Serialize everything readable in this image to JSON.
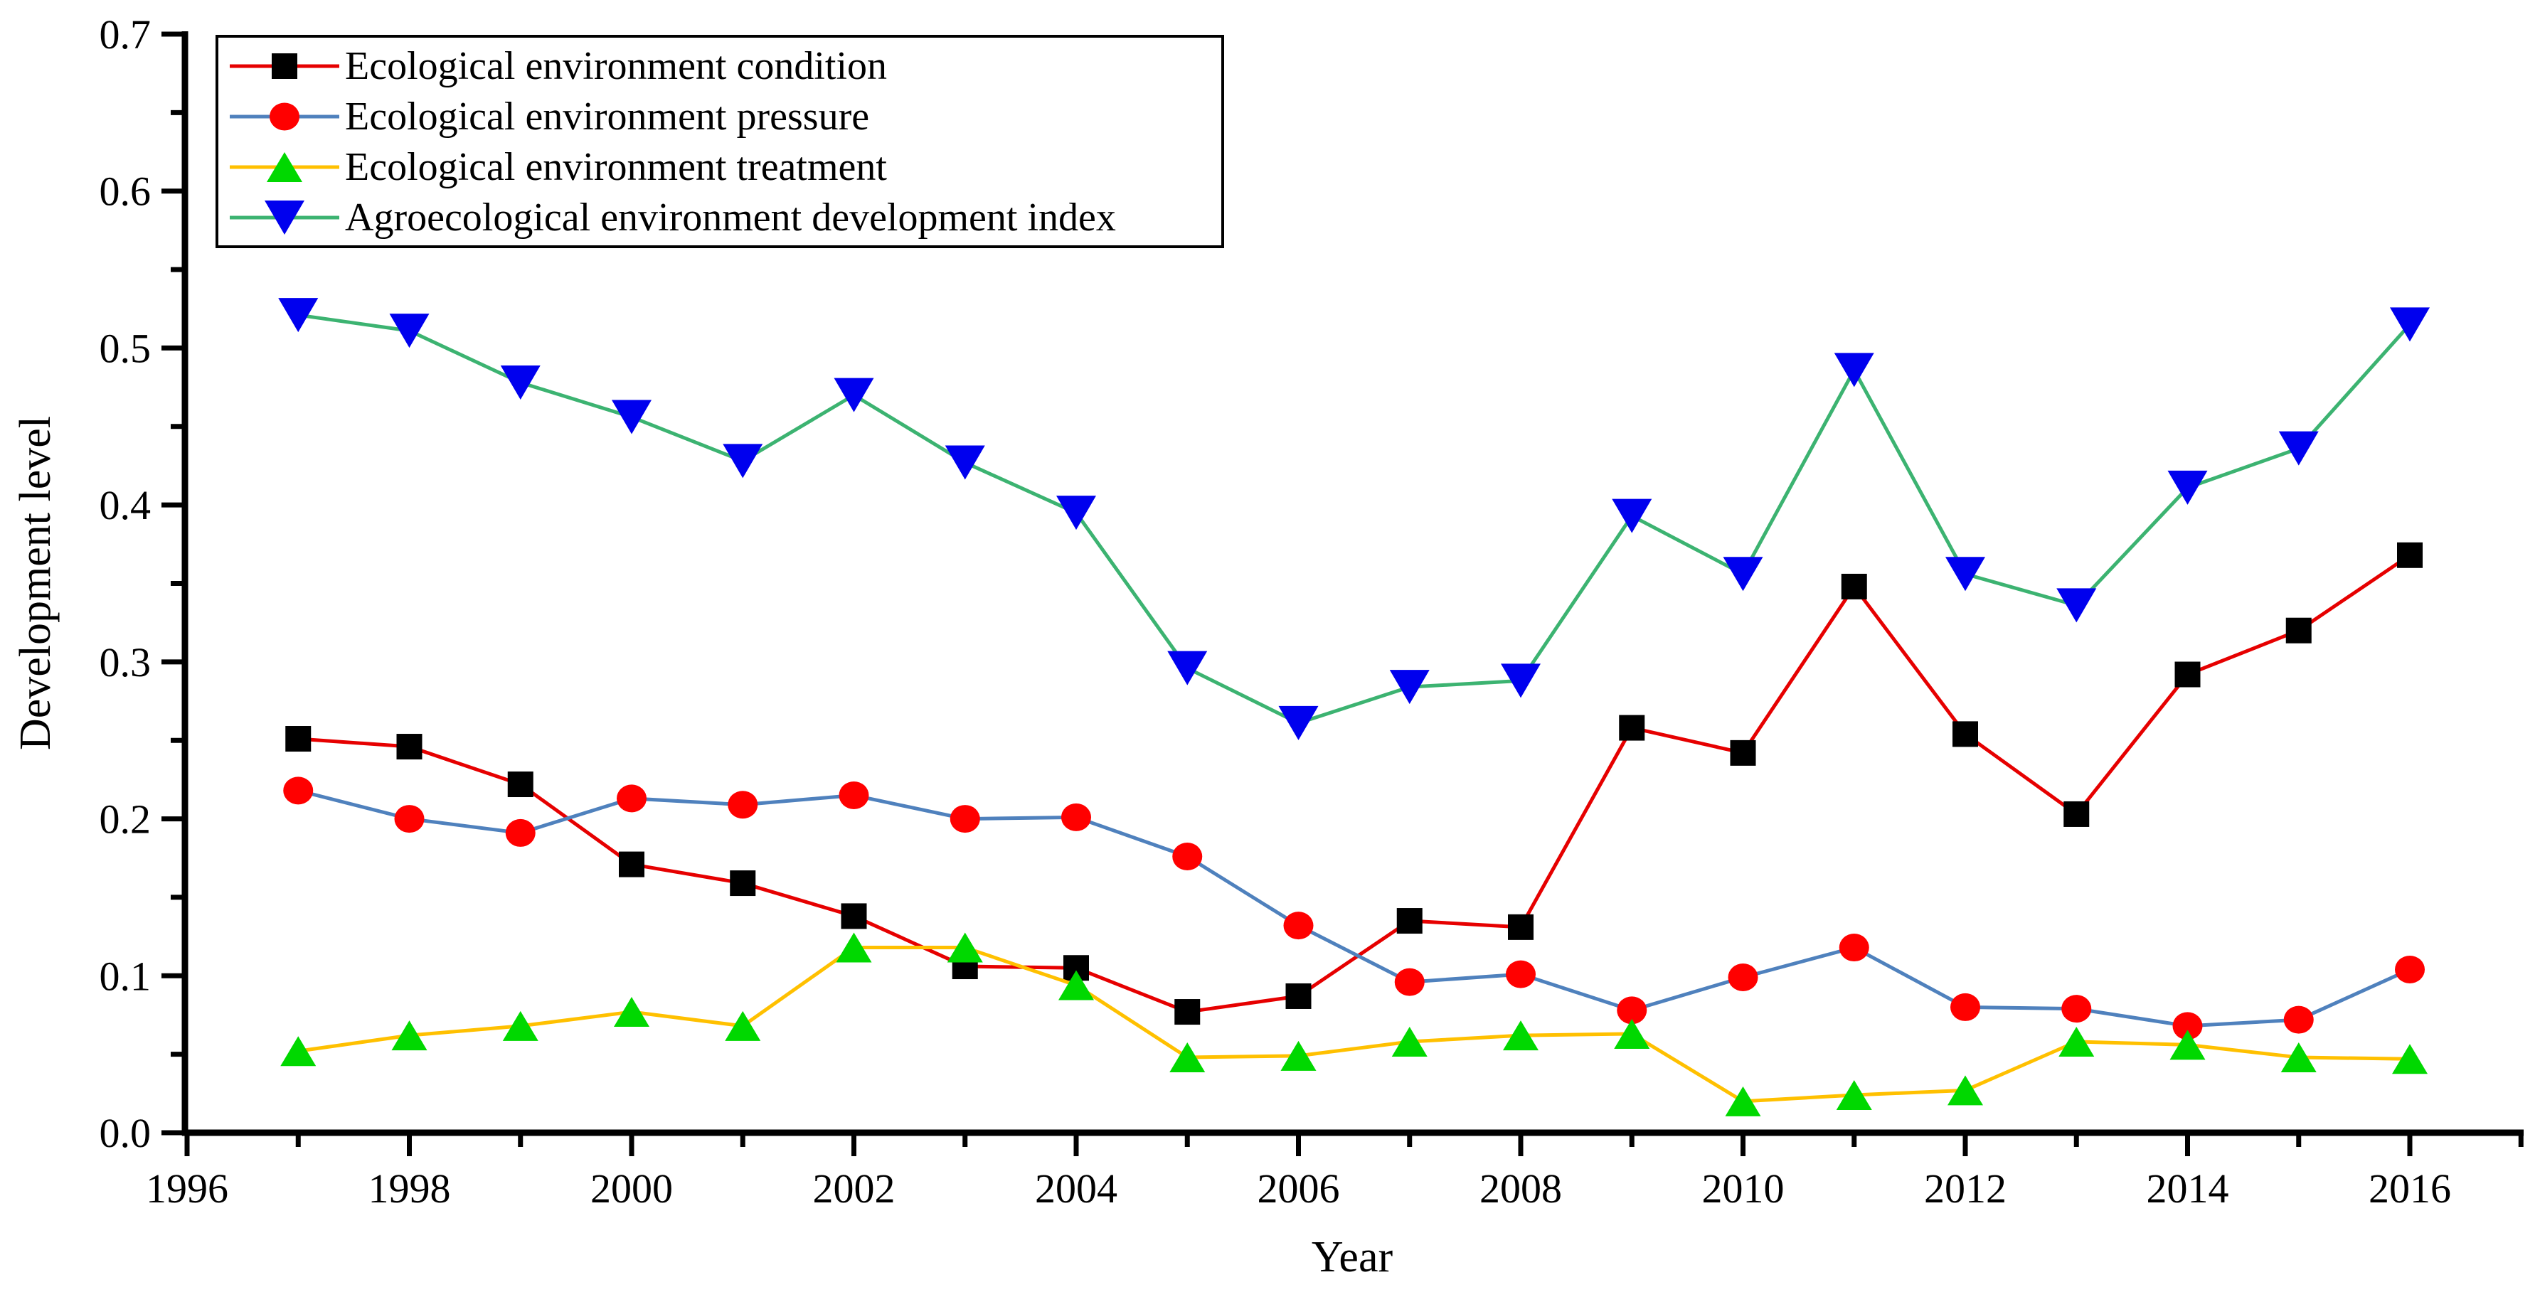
{
  "figure": {
    "background_color": "#ffffff"
  },
  "axes": {
    "x_label": "Year",
    "y_label": "Development level"
  },
  "legend": {
    "position": "upper-left",
    "border_color": "#000000"
  },
  "chart_data": {
    "type": "line",
    "title": "",
    "xlabel": "Year",
    "ylabel": "Development level",
    "xlim": [
      1996,
      2017
    ],
    "ylim": [
      0.0,
      0.7
    ],
    "grid": false,
    "legend_position": "upper left",
    "x_major_ticks": [
      1996,
      1998,
      2000,
      2002,
      2004,
      2006,
      2008,
      2010,
      2012,
      2014,
      2016
    ],
    "x_minor_ticks": [
      1997,
      1999,
      2001,
      2003,
      2005,
      2007,
      2009,
      2011,
      2013,
      2015,
      2017
    ],
    "y_major_tick_labels": [
      "0.0",
      "0.1",
      "0.2",
      "0.3",
      "0.4",
      "0.5",
      "0.6",
      "0.7"
    ],
    "y_major_ticks": [
      0.0,
      0.1,
      0.2,
      0.3,
      0.4,
      0.5,
      0.6,
      0.7
    ],
    "y_minor_ticks": [
      0.05,
      0.15,
      0.25,
      0.35,
      0.45,
      0.55,
      0.65
    ],
    "x": [
      1997,
      1998,
      1999,
      2000,
      2001,
      2002,
      2003,
      2004,
      2005,
      2006,
      2007,
      2008,
      2009,
      2010,
      2011,
      2012,
      2013,
      2014,
      2015,
      2016
    ],
    "series": [
      {
        "name": "Ecological environment condition",
        "line_color": "#e60000",
        "marker_shape": "square",
        "marker_color": "#000000",
        "values": [
          0.251,
          0.246,
          0.222,
          0.171,
          0.159,
          0.138,
          0.106,
          0.105,
          0.077,
          0.087,
          0.135,
          0.131,
          0.258,
          0.242,
          0.348,
          0.254,
          0.203,
          0.292,
          0.32,
          0.368
        ]
      },
      {
        "name": "Ecological environment pressure",
        "line_color": "#4f81bd",
        "marker_shape": "circle",
        "marker_color": "#ff0000",
        "values": [
          0.218,
          0.2,
          0.191,
          0.213,
          0.209,
          0.215,
          0.2,
          0.201,
          0.176,
          0.132,
          0.096,
          0.101,
          0.078,
          0.099,
          0.118,
          0.08,
          0.079,
          0.068,
          0.072,
          0.104
        ]
      },
      {
        "name": "Ecological environment treatment",
        "line_color": "#ffc000",
        "marker_shape": "triangle-up",
        "marker_color": "#00d800",
        "values": [
          0.052,
          0.062,
          0.068,
          0.077,
          0.068,
          0.118,
          0.118,
          0.094,
          0.048,
          0.049,
          0.058,
          0.062,
          0.063,
          0.02,
          0.024,
          0.027,
          0.058,
          0.056,
          0.048,
          0.047
        ]
      },
      {
        "name": "Agroecological environment development index",
        "line_color": "#3cb371",
        "marker_shape": "triangle-down",
        "marker_color": "#0000ee",
        "values": [
          0.521,
          0.511,
          0.478,
          0.456,
          0.428,
          0.47,
          0.427,
          0.395,
          0.296,
          0.261,
          0.284,
          0.288,
          0.393,
          0.356,
          0.486,
          0.356,
          0.336,
          0.411,
          0.436,
          0.515
        ]
      }
    ]
  }
}
